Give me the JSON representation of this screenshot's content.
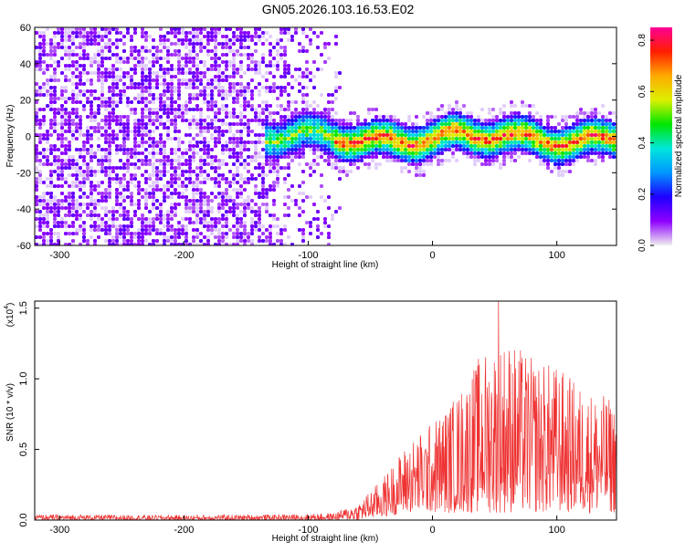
{
  "title": "GN05.2026.103.16.53.E02",
  "chart_data": [
    {
      "type": "heatmap",
      "title": "GN05.2026.103.16.53.E02",
      "xlabel": "Height of straight line (km)",
      "ylabel": "Frequency (Hz)",
      "xlim": [
        -320,
        148
      ],
      "ylim": [
        -60,
        60
      ],
      "xticks": [
        -300,
        -200,
        -100,
        0,
        100
      ],
      "yticks": [
        60,
        40,
        20,
        0,
        -20,
        -40,
        -60
      ],
      "colorbar": {
        "label": "Normalized spectral amplitude",
        "range": [
          0.0,
          0.85
        ],
        "ticks": [
          "0.8",
          "0.6",
          "0.4",
          "0.2",
          "0.0"
        ],
        "colormap": [
          "#f0f0f0",
          "#8f00ff",
          "#1e00ff",
          "#0096ff",
          "#00e6dc",
          "#00e600",
          "#dcf000",
          "#ffaa00",
          "#ff1e00",
          "#ff0096"
        ]
      },
      "description_values": {
        "noise_region_x": [
          -320,
          -75
        ],
        "signal_band_x": [
          -135,
          148
        ],
        "signal_band_center_hz": 0,
        "signal_band_halfwidth_hz": 10,
        "peak_amplitude": 0.85
      }
    },
    {
      "type": "line",
      "xlabel": "Height of straight line (km)",
      "ylabel": "SNR (10 * v/v)",
      "scale_label": "(x10",
      "scale_exp": "4",
      "scale_close": ")",
      "xlim": [
        -320,
        148
      ],
      "ylim": [
        0,
        1.55
      ],
      "xticks": [
        -300,
        -200,
        -100,
        0,
        100
      ],
      "yticks": [
        "0.0",
        "0.5",
        "1.0",
        "1.5"
      ],
      "color": "#ee3333",
      "envelope": {
        "x": [
          -320,
          -200,
          -120,
          -80,
          -60,
          -40,
          -20,
          0,
          20,
          40,
          60,
          80,
          100,
          120,
          148
        ],
        "max": [
          0.04,
          0.035,
          0.04,
          0.05,
          0.12,
          0.3,
          0.55,
          0.7,
          0.9,
          1.2,
          1.3,
          1.15,
          1.1,
          0.95,
          0.85
        ],
        "min": [
          0.0,
          0.0,
          0.0,
          0.0,
          0.0,
          0.02,
          0.05,
          0.05,
          0.05,
          0.05,
          0.05,
          0.05,
          0.05,
          0.05,
          0.05
        ]
      },
      "peak": {
        "x": 53,
        "y": 1.55
      }
    }
  ]
}
